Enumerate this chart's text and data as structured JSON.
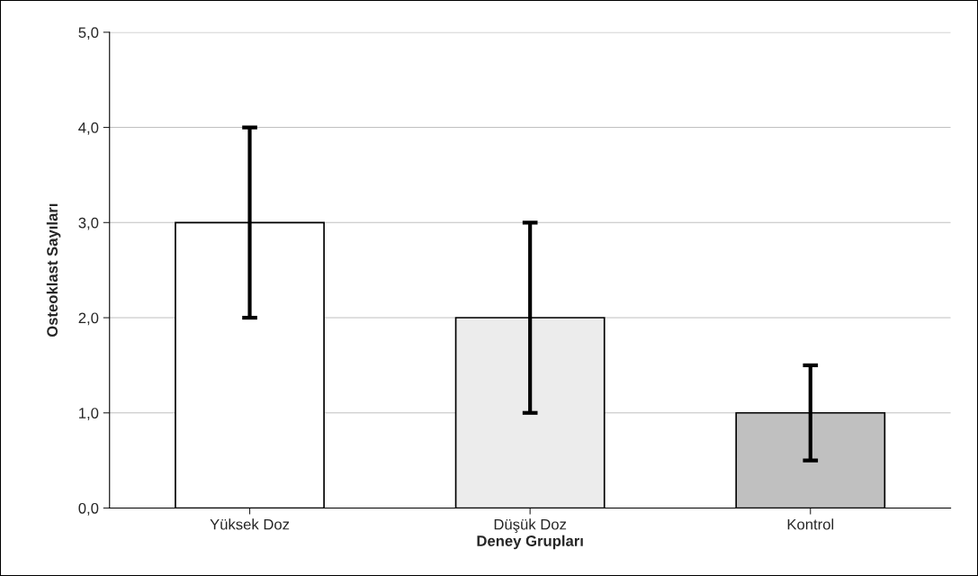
{
  "chart_data": {
    "type": "bar",
    "xlabel": "Deney Grupları",
    "ylabel": "Osteoklast Sayıları",
    "categories": [
      "Yüksek Doz",
      "Düşük Doz",
      "Kontrol"
    ],
    "values": [
      3.0,
      2.0,
      1.0
    ],
    "errors": [
      1.0,
      1.0,
      0.5
    ],
    "colors": [
      "#ffffff",
      "#ececec",
      "#c0c0c0"
    ],
    "ylim": [
      0,
      5
    ],
    "yticks": [
      {
        "value": 0,
        "label": "0,0"
      },
      {
        "value": 1,
        "label": "1,0"
      },
      {
        "value": 2,
        "label": "2,0"
      },
      {
        "value": 3,
        "label": "3,0"
      },
      {
        "value": 4,
        "label": "4,0"
      },
      {
        "value": 5,
        "label": "5,0"
      }
    ],
    "grid": "y"
  }
}
